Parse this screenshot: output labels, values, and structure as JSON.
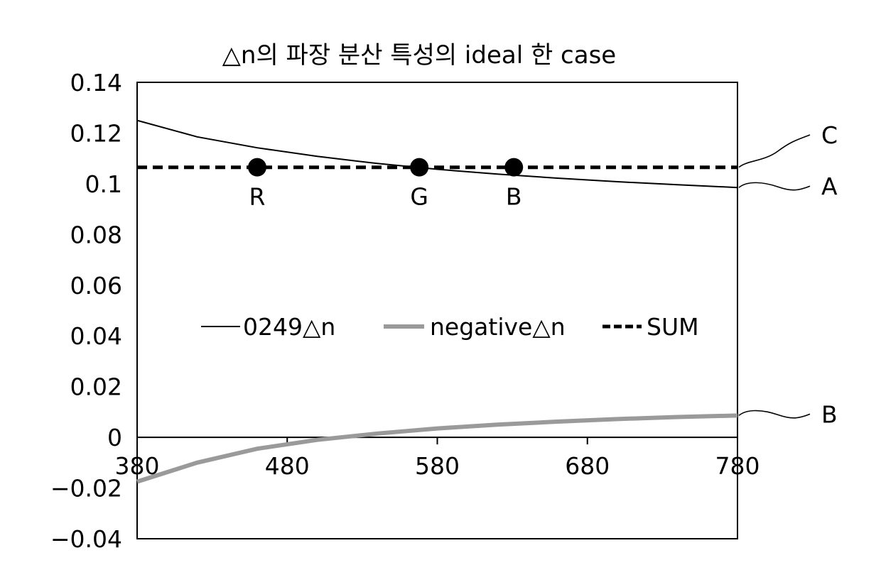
{
  "chart_data": {
    "type": "line",
    "title": "△n의 파장 분산 특성의 ideal  한 case",
    "xlim": [
      380,
      780
    ],
    "ylim": [
      -0.04,
      0.14
    ],
    "x_ticks": [
      "380",
      "480",
      "580",
      "680",
      "780"
    ],
    "y_ticks": [
      "−0.04",
      "−0.02",
      "0",
      "0.02",
      "0.04",
      "0.06",
      "0.08",
      "0.1",
      "0.12",
      "0.14"
    ],
    "series": [
      {
        "name": "0249△n",
        "style": "solid",
        "color": "#000000",
        "x": [
          380,
          420,
          460,
          500,
          540,
          580,
          620,
          660,
          700,
          740,
          780
        ],
        "y": [
          0.125,
          0.1185,
          0.1142,
          0.1108,
          0.108,
          0.1057,
          0.1038,
          0.1022,
          0.1008,
          0.0996,
          0.0985
        ]
      },
      {
        "name": "negative△n",
        "style": "solid-thick",
        "color": "#9a9a9a",
        "x": [
          380,
          420,
          460,
          500,
          540,
          580,
          620,
          660,
          700,
          740,
          780
        ],
        "y": [
          -0.0175,
          -0.01,
          -0.0045,
          -0.001,
          0.0015,
          0.0035,
          0.005,
          0.0062,
          0.0072,
          0.008,
          0.0086
        ]
      },
      {
        "name": "SUM",
        "style": "dashed",
        "color": "#000000",
        "x": [
          380,
          780
        ],
        "y": [
          0.1065,
          0.1065
        ]
      }
    ],
    "points": [
      {
        "label": "R",
        "x": 460,
        "y": 0.1065
      },
      {
        "label": "G",
        "x": 568,
        "y": 0.1065
      },
      {
        "label": "B",
        "x": 631,
        "y": 0.1065
      }
    ],
    "callouts": [
      {
        "label": "C",
        "x": 780,
        "y": 0.1065
      },
      {
        "label": "A",
        "x": 780,
        "y": 0.0985
      },
      {
        "label": "B",
        "x": 780,
        "y": 0.0086
      }
    ],
    "legend": {
      "position": "center",
      "entries": [
        "0249△n",
        "negative△n",
        "SUM"
      ]
    },
    "grid": false
  }
}
